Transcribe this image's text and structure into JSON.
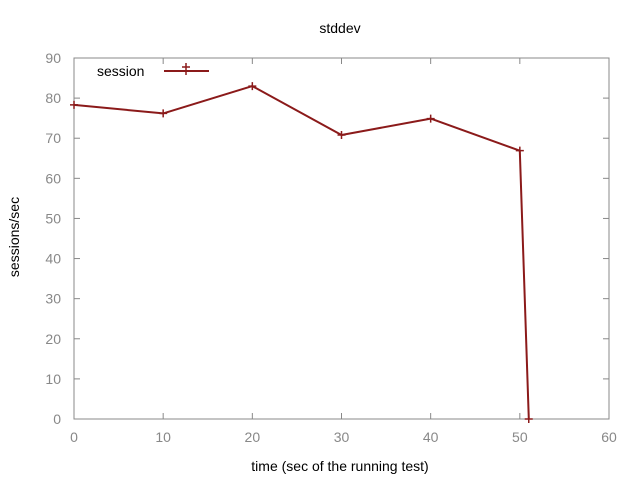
{
  "chart_data": {
    "type": "line",
    "title": "stddev",
    "xlabel": "time (sec of the running test)",
    "ylabel": "sessions/sec",
    "xlim": [
      0,
      60
    ],
    "ylim": [
      0,
      90
    ],
    "x_ticks": [
      "0",
      "10",
      "20",
      "30",
      "40",
      "50",
      "60"
    ],
    "y_ticks": [
      "0",
      "10",
      "20",
      "30",
      "40",
      "50",
      "60",
      "70",
      "80",
      "90"
    ],
    "grid": false,
    "legend_position": "top-left",
    "series": [
      {
        "name": "session",
        "color": "#8b1a1a",
        "marker": "plus",
        "x": [
          0,
          10,
          20,
          30,
          40,
          50,
          51
        ],
        "y": [
          78.3,
          76.2,
          83.0,
          70.8,
          74.9,
          66.9,
          0
        ]
      }
    ]
  }
}
